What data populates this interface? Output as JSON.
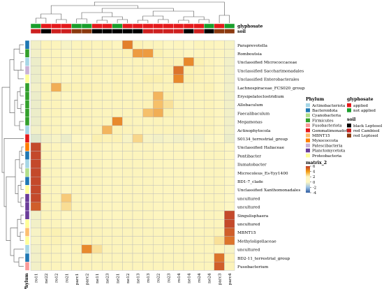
{
  "chart_data": {
    "type": "heatmap",
    "legend_title": "matrix_2",
    "value_range": [
      -4,
      6
    ],
    "colorbar_ticks": [
      6,
      4,
      2,
      0,
      -2,
      -4
    ],
    "columns": [
      "ro11",
      "ne22",
      "ro12",
      "ro21",
      "parc1",
      "parc2",
      "ne11",
      "ne23",
      "ne21",
      "ne12",
      "ne13",
      "ro13",
      "ro22",
      "ro23",
      "ro14",
      "ne14",
      "ro24",
      "ne24",
      "parc3",
      "parc4"
    ],
    "rows": [
      "Paraprevotella",
      "Romboutsia",
      "Unclassified Micrococcaceae",
      "Unclassified Saccharimonadales",
      "Unclassified Enterobacterales",
      "Lachnospiraceae_FCS020_group",
      "Erysipelatoclostridium",
      "Allobaculum",
      "Faecalibaculum",
      "Megamonas",
      "Actinophytocola",
      "S0134_terrestrial_group",
      "Unclassified Haliaceae",
      "Pontibacter",
      "Ilumatobacter",
      "Microcoleus_Es-Yyy1400",
      "BD1-7_clade",
      "Unclassified Xanthomonadales",
      "uncultured",
      "uncultured",
      "Singulisphaera",
      "uncultured",
      "MBNT15",
      "Methyloligellaceae",
      "uncultured",
      "BD2-11_terrestrial_group",
      "Fusobacterium"
    ],
    "row_phylum": [
      "Bacteroidota",
      "Firmicutes",
      "Actinobacteriota",
      "Patescibacteria",
      "Proteobacteria",
      "Firmicutes",
      "Firmicutes",
      "Firmicutes",
      "Firmicutes",
      "Firmicutes",
      "Actinobacteriota",
      "Gemmatimonadota",
      "Myxococcota",
      "Bacteroidota",
      "Actinobacteriota",
      "Cyanobacteria",
      "Bacteroidota",
      "Proteobacteria",
      "Planctomycetota",
      "Planctomycetota",
      "Planctomycetota",
      "Proteobacteria",
      "MBNT15",
      "Proteobacteria",
      "Actinobacteriota",
      "Bacteroidota",
      "Fusobacteriota"
    ],
    "col_glyphosate": [
      "not applied",
      "applied",
      "applied",
      "applied",
      "not applied",
      "not applied",
      "applied",
      "applied",
      "not applied",
      "applied",
      "applied",
      "applied",
      "applied",
      "applied",
      "applied",
      "applied",
      "applied",
      "not applied",
      "applied",
      "not applied"
    ],
    "col_soil": [
      "red Cambisol",
      "black Leptosol",
      "red Cambisol",
      "red Cambisol",
      "red Leptosol",
      "red Leptosol",
      "black Leptosol",
      "black Leptosol",
      "black Leptosol",
      "black Leptosol",
      "black Leptosol",
      "red Cambisol",
      "red Cambisol",
      "red Cambisol",
      "red Cambisol",
      "black Leptosol",
      "red Cambisol",
      "black Leptosol",
      "red Leptosol",
      "red Leptosol"
    ],
    "values": [
      [
        -0.5,
        0.3,
        0.2,
        -0.4,
        0.1,
        0.4,
        0.2,
        0.3,
        0.0,
        4.2,
        0.6,
        0.2,
        0.2,
        -0.2,
        0.0,
        -0.3,
        0.2,
        0.1,
        0.0,
        -0.4
      ],
      [
        -0.5,
        0.2,
        0.1,
        -0.3,
        0.2,
        0.5,
        0.1,
        0.2,
        0.3,
        0.6,
        3.5,
        3.5,
        0.8,
        0.2,
        0.1,
        -0.2,
        0.0,
        0.1,
        0.0,
        -0.4
      ],
      [
        -0.6,
        0.0,
        0.3,
        -0.3,
        0.3,
        0.2,
        0.4,
        0.2,
        0.5,
        0.2,
        0.3,
        0.3,
        0.3,
        0.6,
        0.6,
        4.0,
        1.0,
        0.4,
        0.0,
        -0.5
      ],
      [
        -0.6,
        0.2,
        0.2,
        -0.3,
        0.2,
        0.4,
        0.5,
        0.2,
        0.3,
        0.2,
        0.4,
        0.3,
        0.4,
        0.6,
        4.5,
        0.8,
        0.6,
        0.3,
        0.0,
        -0.5
      ],
      [
        -0.6,
        0.1,
        0.2,
        -0.3,
        0.3,
        0.3,
        0.3,
        0.2,
        0.6,
        0.3,
        0.4,
        1.0,
        1.0,
        0.4,
        4.0,
        1.0,
        0.5,
        0.3,
        0.0,
        -0.5
      ],
      [
        -0.5,
        0.5,
        3.0,
        0.8,
        0.6,
        0.8,
        0.5,
        0.3,
        0.6,
        0.4,
        0.6,
        0.5,
        0.3,
        0.4,
        0.5,
        0.4,
        0.4,
        0.6,
        0.0,
        -0.5
      ],
      [
        -0.6,
        0.3,
        0.4,
        -0.2,
        0.2,
        0.3,
        0.2,
        0.2,
        0.3,
        0.2,
        0.3,
        0.4,
        2.8,
        1.0,
        0.4,
        0.3,
        0.3,
        0.3,
        0.0,
        -0.5
      ],
      [
        -0.6,
        0.2,
        0.3,
        -0.2,
        0.3,
        0.3,
        0.2,
        0.1,
        0.2,
        0.2,
        0.3,
        0.5,
        2.5,
        1.5,
        0.4,
        0.2,
        0.2,
        0.3,
        0.0,
        -0.5
      ],
      [
        -0.6,
        0.2,
        0.3,
        -0.2,
        0.3,
        0.3,
        0.2,
        0.1,
        0.2,
        0.2,
        0.3,
        2.5,
        3.0,
        1.0,
        0.4,
        0.2,
        0.2,
        0.3,
        0.0,
        -0.5
      ],
      [
        -0.6,
        0.2,
        0.2,
        -0.2,
        0.2,
        0.3,
        0.2,
        0.1,
        4.0,
        0.3,
        0.2,
        0.2,
        0.3,
        0.2,
        0.3,
        0.2,
        0.2,
        0.3,
        0.0,
        -0.5
      ],
      [
        -0.5,
        0.3,
        0.2,
        -0.2,
        0.3,
        0.3,
        0.3,
        2.8,
        0.5,
        0.3,
        0.3,
        0.2,
        0.3,
        0.4,
        0.3,
        0.3,
        0.3,
        0.3,
        0.0,
        -0.5
      ],
      [
        -0.8,
        -0.5,
        -0.4,
        -0.6,
        -0.3,
        -0.3,
        1.0,
        0.6,
        0.6,
        -0.4,
        1.8,
        -0.4,
        -0.5,
        -0.4,
        -0.5,
        -0.4,
        -0.5,
        -0.3,
        -0.3,
        -0.6
      ],
      [
        5.5,
        0.2,
        0.1,
        -0.3,
        0.1,
        0.1,
        0.1,
        0.0,
        0.0,
        0.1,
        0.1,
        0.1,
        0.0,
        0.0,
        0.0,
        0.0,
        0.0,
        0.1,
        0.1,
        -0.3
      ],
      [
        5.5,
        0.2,
        0.1,
        -0.3,
        0.1,
        0.1,
        0.1,
        0.0,
        0.0,
        0.1,
        0.1,
        0.1,
        0.0,
        0.0,
        0.0,
        0.0,
        0.0,
        0.1,
        0.1,
        -0.3
      ],
      [
        5.5,
        0.2,
        0.1,
        -0.3,
        0.1,
        0.1,
        0.1,
        0.0,
        0.0,
        0.1,
        0.1,
        0.1,
        0.0,
        0.0,
        0.0,
        0.0,
        0.0,
        0.1,
        0.1,
        -0.3
      ],
      [
        5.5,
        0.2,
        0.1,
        -0.3,
        0.1,
        0.1,
        0.1,
        0.0,
        0.0,
        0.1,
        0.1,
        0.1,
        0.0,
        0.0,
        0.0,
        0.0,
        0.0,
        0.1,
        0.1,
        -0.3
      ],
      [
        5.5,
        0.2,
        0.1,
        -0.3,
        0.1,
        0.1,
        0.1,
        0.0,
        0.0,
        0.1,
        0.1,
        0.1,
        0.0,
        0.0,
        0.0,
        0.0,
        0.0,
        0.1,
        0.1,
        -0.3
      ],
      [
        5.5,
        0.2,
        0.1,
        -0.3,
        0.1,
        0.1,
        0.1,
        0.0,
        0.0,
        0.1,
        0.1,
        0.1,
        0.0,
        0.0,
        0.0,
        0.0,
        0.0,
        0.1,
        0.1,
        -0.3
      ],
      [
        5.5,
        0.3,
        0.2,
        2.2,
        0.2,
        0.2,
        0.1,
        0.0,
        0.0,
        0.1,
        0.1,
        0.1,
        0.0,
        0.0,
        0.0,
        0.0,
        0.0,
        0.1,
        0.1,
        -0.3
      ],
      [
        5.0,
        0.3,
        0.2,
        1.6,
        0.2,
        0.2,
        0.1,
        0.0,
        0.0,
        0.1,
        0.1,
        0.1,
        0.0,
        0.0,
        0.0,
        0.0,
        0.0,
        0.1,
        0.1,
        -0.3
      ],
      [
        -0.5,
        0.2,
        0.1,
        -0.3,
        0.1,
        0.1,
        0.1,
        0.0,
        0.0,
        0.1,
        0.1,
        0.1,
        0.0,
        0.0,
        0.0,
        0.0,
        0.0,
        0.1,
        0.1,
        5.5
      ],
      [
        -0.5,
        0.2,
        0.1,
        -0.3,
        0.1,
        0.1,
        0.1,
        0.0,
        0.0,
        0.1,
        0.1,
        0.1,
        0.0,
        0.0,
        0.0,
        0.0,
        0.0,
        0.1,
        0.1,
        5.5
      ],
      [
        -0.4,
        0.6,
        0.8,
        0.3,
        0.3,
        0.6,
        0.3,
        0.2,
        0.2,
        0.2,
        0.2,
        0.2,
        0.2,
        0.2,
        0.2,
        0.2,
        0.2,
        0.3,
        0.5,
        5.0
      ],
      [
        -0.4,
        0.4,
        0.6,
        0.2,
        0.3,
        0.4,
        0.3,
        0.2,
        0.2,
        0.2,
        0.2,
        0.2,
        0.2,
        0.3,
        0.3,
        0.2,
        0.3,
        0.4,
        1.5,
        4.5
      ],
      [
        -0.5,
        0.3,
        0.2,
        -0.2,
        0.3,
        4.0,
        1.5,
        0.3,
        0.2,
        0.2,
        0.2,
        0.2,
        0.2,
        0.2,
        0.2,
        0.2,
        0.2,
        0.2,
        0.2,
        -0.4
      ],
      [
        -0.5,
        0.2,
        0.2,
        -0.2,
        0.2,
        0.3,
        0.2,
        0.2,
        0.2,
        0.2,
        0.2,
        0.2,
        0.2,
        0.2,
        0.2,
        0.2,
        0.2,
        0.2,
        4.5,
        0.5
      ],
      [
        -0.5,
        0.2,
        0.2,
        -0.2,
        0.2,
        0.3,
        0.2,
        0.2,
        0.2,
        0.2,
        0.2,
        0.2,
        0.2,
        0.2,
        0.2,
        0.2,
        0.2,
        0.2,
        5.0,
        0.3
      ]
    ],
    "phylum_legend_title": "Phylum",
    "phylum_legend": [
      {
        "label": "Actinobacteriota",
        "color": "#a6d6e6"
      },
      {
        "label": "Bacteroidota",
        "color": "#1f78b4"
      },
      {
        "label": "Cyanobacteria",
        "color": "#b2df8a"
      },
      {
        "label": "Firmicutes",
        "color": "#33a02c"
      },
      {
        "label": "Fusobacteriota",
        "color": "#fb9a99"
      },
      {
        "label": "Gemmatimonadota",
        "color": "#e31a1c"
      },
      {
        "label": "MBNT15",
        "color": "#fdbf6f"
      },
      {
        "label": "Myxococcota",
        "color": "#ff7f00"
      },
      {
        "label": "Patescibacteria",
        "color": "#cab2d6"
      },
      {
        "label": "Planctomycetota",
        "color": "#6a3d9a"
      },
      {
        "label": "Proteobacteria",
        "color": "#ffff99"
      }
    ],
    "glyphosate_legend_title": "glyphosate",
    "glyphosate_legend": [
      {
        "label": "applied",
        "color": "#e41a1c"
      },
      {
        "label": "not applied",
        "color": "#1a9e2c"
      }
    ],
    "soil_legend_title": "soil",
    "soil_legend": [
      {
        "label": "black Leptosol",
        "color": "#000000"
      },
      {
        "label": "red Cambisol",
        "color": "#cc2020"
      },
      {
        "label": "red Leptosol",
        "color": "#8b3a10"
      }
    ],
    "annotation_labels": {
      "glyphosate": "glyphosate",
      "soil": "soil",
      "phylum": "Phylum"
    }
  }
}
